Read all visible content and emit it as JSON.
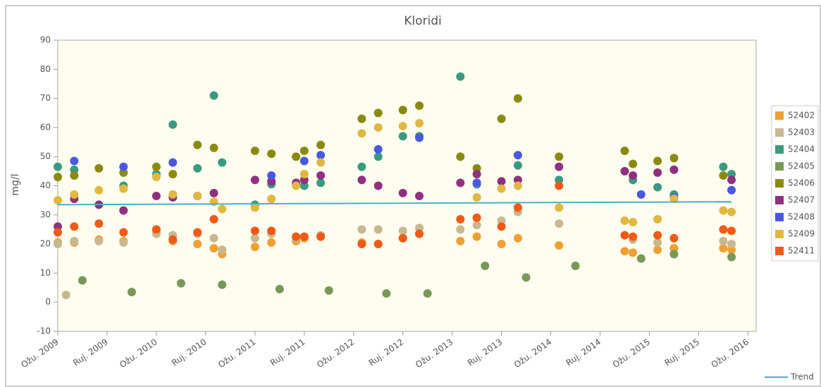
{
  "chart_data": {
    "type": "scatter",
    "title": "Kloridi",
    "y_label": "mg/l",
    "xlim": [
      "2009-03",
      "2016-04"
    ],
    "xticks": [
      {
        "value": "2009-03",
        "label": "Ožu. 2009"
      },
      {
        "value": "2009-09",
        "label": "Ruj. 2009"
      },
      {
        "value": "2010-03",
        "label": "Ožu. 2010"
      },
      {
        "value": "2010-09",
        "label": "Ruj. 2010"
      },
      {
        "value": "2011-03",
        "label": "Ožu. 2011"
      },
      {
        "value": "2011-09",
        "label": "Ruj. 2011"
      },
      {
        "value": "2012-03",
        "label": "Ožu. 2012"
      },
      {
        "value": "2012-09",
        "label": "Ruj. 2012"
      },
      {
        "value": "2013-03",
        "label": "Ožu. 2013"
      },
      {
        "value": "2013-09",
        "label": "Ruj. 2013"
      },
      {
        "value": "2014-03",
        "label": "Ožu. 2014"
      },
      {
        "value": "2014-09",
        "label": "Ruj. 2014"
      },
      {
        "value": "2015-03",
        "label": "Ožu. 2015"
      },
      {
        "value": "2015-09",
        "label": "Ruj. 2015"
      },
      {
        "value": "2016-03",
        "label": "Ožu. 2016"
      }
    ],
    "ylim": [
      -10,
      90
    ],
    "yticks": [
      -10,
      0,
      10,
      20,
      30,
      40,
      50,
      60,
      70,
      80,
      90
    ],
    "grid": false,
    "legend": "right",
    "series": [
      {
        "name": "52402",
        "color": "#f0a030",
        "x": [
          "2009-03",
          "2009-05",
          "2009-08",
          "2009-11",
          "2010-03",
          "2010-05",
          "2010-08",
          "2010-10",
          "2010-11",
          "2011-03",
          "2011-05",
          "2011-08",
          "2011-09",
          "2012-04",
          "2012-06",
          "2012-09",
          "2012-11",
          "2013-04",
          "2013-06",
          "2013-09",
          "2013-11",
          "2014-04",
          "2014-12",
          "2015-01",
          "2015-04",
          "2015-06",
          "2015-12",
          "2016-01"
        ],
        "values": [
          20.5,
          20.5,
          21.5,
          21,
          24,
          21,
          20,
          18.5,
          16.5,
          19,
          20.5,
          21,
          22,
          20.5,
          20,
          22,
          23.5,
          21,
          22.5,
          20,
          22,
          19.5,
          17.5,
          17,
          18,
          18.5,
          18.5,
          18
        ]
      },
      {
        "name": "52403",
        "color": "#c8b890",
        "x": [
          "2009-03",
          "2009-04",
          "2009-05",
          "2009-08",
          "2009-11",
          "2010-03",
          "2010-05",
          "2010-08",
          "2010-10",
          "2010-11",
          "2011-03",
          "2011-05",
          "2011-08",
          "2011-11",
          "2012-04",
          "2012-06",
          "2012-09",
          "2012-11",
          "2013-04",
          "2013-06",
          "2013-09",
          "2013-11",
          "2014-04",
          "2015-01",
          "2015-04",
          "2015-12",
          "2016-01"
        ],
        "values": [
          20,
          2.5,
          21,
          21,
          20.5,
          23.5,
          23,
          23.5,
          22,
          18,
          22,
          23.5,
          22,
          23,
          25,
          25,
          24.5,
          25.5,
          25,
          26.5,
          28,
          31,
          27,
          21.5,
          20.5,
          21,
          20
        ]
      },
      {
        "name": "52404",
        "color": "#3a9a80",
        "x": [
          "2009-03",
          "2009-05",
          "2009-11",
          "2010-03",
          "2010-05",
          "2010-08",
          "2010-10",
          "2010-11",
          "2011-03",
          "2011-05",
          "2011-08",
          "2011-09",
          "2011-11",
          "2012-04",
          "2012-06",
          "2012-09",
          "2012-11",
          "2013-04",
          "2013-06",
          "2013-11",
          "2014-04",
          "2015-01",
          "2015-04",
          "2015-06",
          "2015-12",
          "2016-01"
        ],
        "values": [
          46.5,
          45.5,
          40,
          44,
          61,
          46,
          71,
          48,
          33.5,
          40.5,
          40.5,
          40,
          41,
          46.5,
          50,
          57,
          57,
          77.5,
          40.5,
          47,
          42,
          42,
          39.5,
          37,
          46.5,
          44
        ]
      },
      {
        "name": "52405",
        "color": "#789858",
        "x": [
          "2009-06",
          "2009-12",
          "2010-06",
          "2010-11",
          "2011-06",
          "2011-12",
          "2012-07",
          "2012-12",
          "2013-07",
          "2013-12",
          "2014-06",
          "2015-02",
          "2015-06",
          "2016-01"
        ],
        "values": [
          7.5,
          3.5,
          6.5,
          6,
          4.5,
          4,
          3,
          3,
          12.5,
          8.5,
          12.5,
          15,
          16.5,
          15.5
        ]
      },
      {
        "name": "52406",
        "color": "#8a8a10",
        "x": [
          "2009-03",
          "2009-05",
          "2009-08",
          "2009-11",
          "2010-03",
          "2010-05",
          "2010-08",
          "2010-10",
          "2011-03",
          "2011-05",
          "2011-08",
          "2011-09",
          "2011-11",
          "2012-04",
          "2012-06",
          "2012-09",
          "2012-11",
          "2013-04",
          "2013-06",
          "2013-09",
          "2013-11",
          "2014-04",
          "2014-12",
          "2015-01",
          "2015-04",
          "2015-06",
          "2015-12"
        ],
        "values": [
          43,
          43.5,
          46,
          44.5,
          46.5,
          44,
          54,
          53,
          52,
          51,
          50,
          52,
          54,
          63,
          65,
          66,
          67.5,
          50,
          46,
          63,
          70,
          50,
          52,
          47.5,
          48.5,
          49.5,
          43.5
        ]
      },
      {
        "name": "52407",
        "color": "#903080",
        "x": [
          "2009-03",
          "2009-05",
          "2009-08",
          "2009-11",
          "2010-03",
          "2010-05",
          "2010-08",
          "2010-10",
          "2011-03",
          "2011-05",
          "2011-08",
          "2011-09",
          "2011-11",
          "2012-04",
          "2012-06",
          "2012-09",
          "2012-11",
          "2013-04",
          "2013-06",
          "2013-09",
          "2013-11",
          "2014-04",
          "2014-12",
          "2015-01",
          "2015-04",
          "2015-06",
          "2016-01"
        ],
        "values": [
          26,
          35.5,
          33.5,
          31.5,
          36.5,
          36,
          36.5,
          37.5,
          42,
          41.5,
          41,
          42,
          43.5,
          42,
          40,
          37.5,
          36.5,
          41,
          44,
          41.5,
          42,
          46.5,
          45,
          43.5,
          44.5,
          45.5,
          42
        ]
      },
      {
        "name": "52408",
        "color": "#4a58e0",
        "x": [
          "2009-05",
          "2009-11",
          "2010-05",
          "2011-05",
          "2011-09",
          "2011-11",
          "2012-06",
          "2012-11",
          "2013-06",
          "2013-11",
          "2015-02",
          "2015-06",
          "2016-01"
        ],
        "values": [
          48.5,
          46.5,
          48,
          43.5,
          48.5,
          50.5,
          52.5,
          56.5,
          41,
          50.5,
          37,
          36,
          38.5
        ]
      },
      {
        "name": "52409",
        "color": "#e0b840",
        "x": [
          "2009-03",
          "2009-05",
          "2009-08",
          "2009-11",
          "2010-03",
          "2010-05",
          "2010-08",
          "2010-10",
          "2010-11",
          "2011-03",
          "2011-05",
          "2011-08",
          "2011-09",
          "2011-11",
          "2012-04",
          "2012-06",
          "2012-09",
          "2012-11",
          "2013-06",
          "2013-09",
          "2013-11",
          "2014-04",
          "2014-12",
          "2015-01",
          "2015-04",
          "2015-06",
          "2015-12",
          "2016-01"
        ],
        "values": [
          35,
          37,
          38.5,
          39,
          43,
          37,
          36.5,
          34.5,
          32,
          32.5,
          35.5,
          40,
          44,
          48,
          58,
          60,
          60.5,
          61.5,
          36,
          39,
          40,
          32.5,
          28,
          27.5,
          28.5,
          35.5,
          31.5,
          31
        ]
      },
      {
        "name": "52411",
        "color": "#f05a14",
        "x": [
          "2009-03",
          "2009-05",
          "2009-08",
          "2009-11",
          "2010-03",
          "2010-05",
          "2010-08",
          "2010-10",
          "2011-03",
          "2011-05",
          "2011-08",
          "2011-09",
          "2011-11",
          "2012-04",
          "2012-06",
          "2012-09",
          "2012-11",
          "2013-04",
          "2013-06",
          "2013-09",
          "2013-11",
          "2014-04",
          "2014-12",
          "2015-01",
          "2015-04",
          "2015-06",
          "2015-12",
          "2016-01"
        ],
        "values": [
          24,
          26,
          27,
          24,
          25,
          21.5,
          24,
          28.5,
          24.5,
          24.5,
          22.5,
          22.5,
          22.5,
          20,
          20,
          22,
          23.5,
          28.5,
          29,
          26,
          32.5,
          40,
          23,
          22.5,
          23,
          22,
          25,
          24.5
        ]
      }
    ],
    "trend": {
      "name": "Trend",
      "color": "#4ab0c8",
      "x": [
        "2009-03",
        "2016-01"
      ],
      "values": [
        33.5,
        34.5
      ]
    }
  }
}
